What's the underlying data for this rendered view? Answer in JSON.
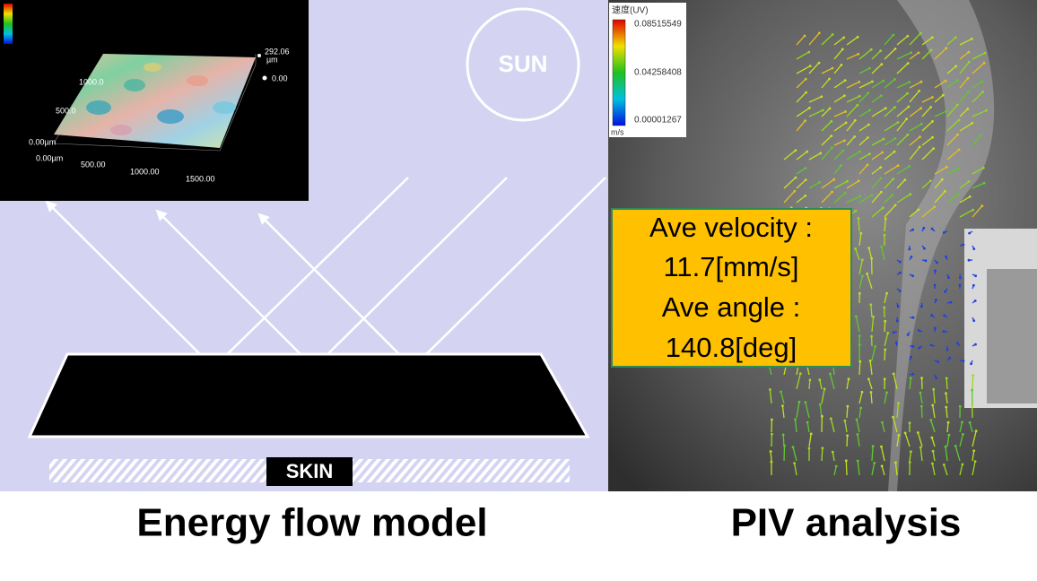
{
  "left_panel": {
    "inset": {
      "z_max": "292.06",
      "z_unit": "µm",
      "z_min": "0.00",
      "y_labels": [
        "1000.0",
        "500.0",
        "0.00µm"
      ],
      "x_labels": [
        "0.00µm",
        "500.00",
        "1000.00",
        "1500.00"
      ]
    },
    "sun": "SUN",
    "skin": "SKIN"
  },
  "right_panel": {
    "colorbar": {
      "title": "速度(UV)",
      "labels": [
        "0.08515549",
        "0.04258408",
        "0.00001267"
      ],
      "unit": "m/s"
    },
    "stats": [
      "Ave velocity :",
      "11.7[mm/s]",
      "Ave angle :",
      "140.8[deg]"
    ]
  },
  "captions": [
    "Energy flow model",
    "PIV analysis"
  ]
}
